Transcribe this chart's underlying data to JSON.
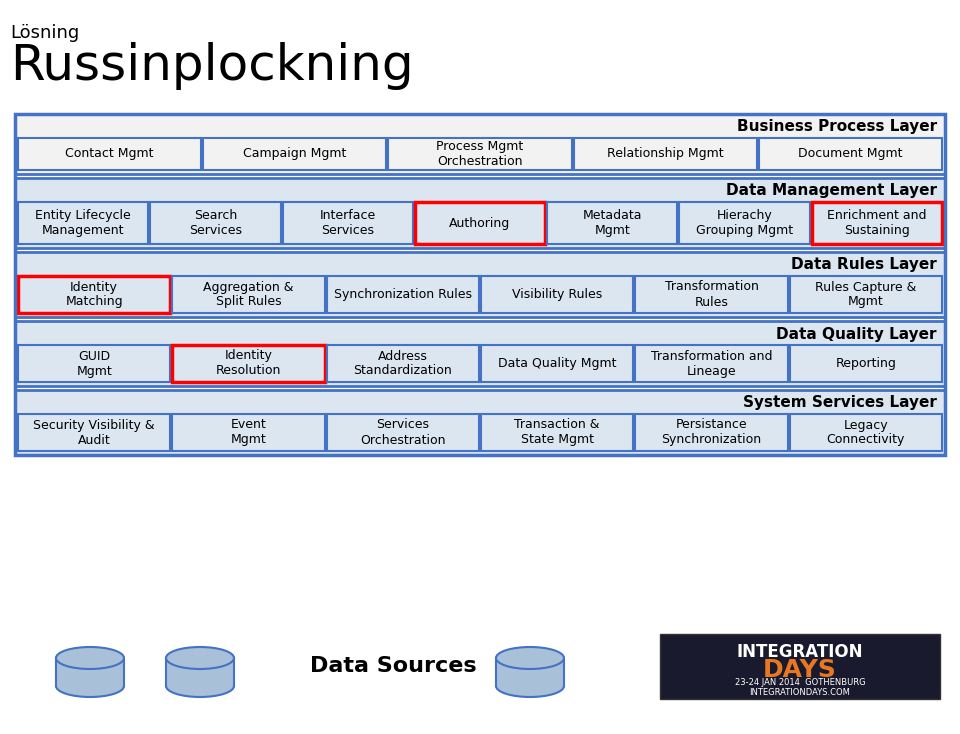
{
  "title_small": "Lösning",
  "title_large": "Russinplockning",
  "bg_color": "#ffffff",
  "outer_border_color": "#4472c4",
  "cell_bg_light": "#dce6f1",
  "cell_bg_white": "#f2f2f2",
  "cell_border": "#4472c4",
  "red_border": "#ff0000",
  "text_color": "#000000",
  "layers": [
    {
      "label": "Business Process Layer",
      "label_align": "right",
      "bg": "#f2f2f2",
      "cells": [
        "Contact Mgmt",
        "Campaign Mgmt",
        "Process Mgmt\nOrchestration",
        "Relationship Mgmt",
        "Document Mgmt"
      ],
      "cell_bg": "#f2f2f2",
      "red_cells": []
    },
    {
      "label": "Data Management Layer",
      "label_align": "right",
      "bg": "#dce6f1",
      "cells": [
        "Entity Lifecycle\nManagement",
        "Search\nServices",
        "Interface\nServices",
        "Authoring",
        "Metadata\nMgmt",
        "Hierachy\nGrouping Mgmt",
        "Enrichment and\nSustaining"
      ],
      "cell_bg": "#dce6f1",
      "red_cells": [
        "Authoring",
        "Enrichment and\nSustaining"
      ]
    },
    {
      "label": "Data Rules Layer",
      "label_align": "right",
      "bg": "#dce6f1",
      "cells": [
        "Identity\nMatching",
        "Aggregation &\nSplit Rules",
        "Synchronization Rules",
        "Visibility Rules",
        "Transformation\nRules",
        "Rules Capture &\nMgmt"
      ],
      "cell_bg": "#dce6f1",
      "red_cells": [
        "Identity\nMatching"
      ]
    },
    {
      "label": "Data Quality Layer",
      "label_align": "right",
      "bg": "#dce6f1",
      "cells": [
        "GUID\nMgmt",
        "Identity\nResolution",
        "Address\nStandardization",
        "Data Quality Mgmt",
        "Transformation and\nLineage",
        "Reporting"
      ],
      "cell_bg": "#dce6f1",
      "red_cells": [
        "Identity\nResolution"
      ]
    },
    {
      "label": "System Services Layer",
      "label_align": "right",
      "bg": "#dce6f1",
      "cells": [
        "Security Visibility &\nAudit",
        "Event\nMgmt",
        "Services\nOrchestration",
        "Transaction &\nState Mgmt",
        "Persistance\nSynchronization",
        "Legacy\nConnectivity"
      ],
      "cell_bg": "#dce6f1",
      "red_cells": []
    }
  ]
}
